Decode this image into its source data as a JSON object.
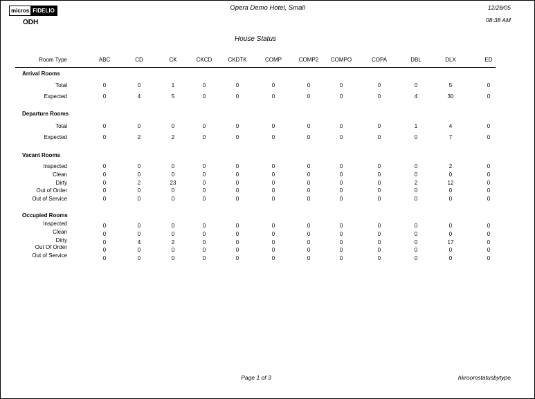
{
  "header": {
    "logo_left": "micros",
    "logo_right": "FIDELIO",
    "hotel": "Opera Demo Hotel, Small",
    "property": "ODH",
    "date": "12/28/05",
    "time": "08:38 AM",
    "report_title": "House Status"
  },
  "table": {
    "room_type_label": "Room Type",
    "columns": [
      "ABC",
      "CD",
      "CK",
      "CKCD",
      "CKDTK",
      "COMP",
      "COMP2",
      "COMPO",
      "COPA",
      "DBL",
      "DLX",
      "ED"
    ],
    "sections": [
      {
        "title": "Arrival Rooms",
        "rows": [
          {
            "label": "Total",
            "values": [
              0,
              0,
              1,
              0,
              0,
              0,
              0,
              0,
              0,
              0,
              5,
              0
            ]
          },
          {
            "label": "Expected",
            "values": [
              0,
              4,
              5,
              0,
              0,
              0,
              0,
              0,
              0,
              4,
              30,
              0
            ]
          }
        ]
      },
      {
        "title": "Departure Rooms",
        "rows": [
          {
            "label": "Total",
            "values": [
              0,
              0,
              0,
              0,
              0,
              0,
              0,
              0,
              0,
              1,
              4,
              0
            ]
          },
          {
            "label": "Expected",
            "values": [
              0,
              2,
              2,
              0,
              0,
              0,
              0,
              0,
              0,
              0,
              7,
              0
            ]
          }
        ]
      },
      {
        "title": "Vacant Rooms",
        "rows": [
          {
            "label": "Inspected",
            "values": [
              0,
              0,
              0,
              0,
              0,
              0,
              0,
              0,
              0,
              0,
              2,
              0
            ]
          },
          {
            "label": "Clean",
            "values": [
              0,
              0,
              0,
              0,
              0,
              0,
              0,
              0,
              0,
              0,
              0,
              0
            ]
          },
          {
            "label": "Dirty",
            "values": [
              0,
              2,
              23,
              0,
              0,
              0,
              0,
              0,
              0,
              2,
              12,
              0
            ]
          },
          {
            "label": "Out of Order",
            "values": [
              0,
              0,
              0,
              0,
              0,
              0,
              0,
              0,
              0,
              0,
              0,
              0
            ]
          },
          {
            "label": "Out of Service",
            "values": [
              0,
              0,
              0,
              0,
              0,
              0,
              0,
              0,
              0,
              0,
              0,
              0
            ]
          }
        ]
      },
      {
        "title": "Occupied Rooms",
        "rows": [
          {
            "label": "Inspected",
            "values": [
              0,
              0,
              0,
              0,
              0,
              0,
              0,
              0,
              0,
              0,
              0,
              0
            ]
          },
          {
            "label": "Clean",
            "values": [
              0,
              0,
              0,
              0,
              0,
              0,
              0,
              0,
              0,
              0,
              0,
              0
            ]
          },
          {
            "label": "Dirty",
            "values": [
              0,
              4,
              2,
              0,
              0,
              0,
              0,
              0,
              0,
              0,
              17,
              0
            ]
          },
          {
            "label": "Out Of Order",
            "values": [
              0,
              0,
              0,
              0,
              0,
              0,
              0,
              0,
              0,
              0,
              0,
              0
            ]
          },
          {
            "label": "Out of Service",
            "values": [
              0,
              0,
              0,
              0,
              0,
              0,
              0,
              0,
              0,
              0,
              0,
              0
            ]
          }
        ]
      }
    ]
  },
  "footer": {
    "page": "Page 1 of 3",
    "report_name": "hkroomstatusbytype"
  }
}
